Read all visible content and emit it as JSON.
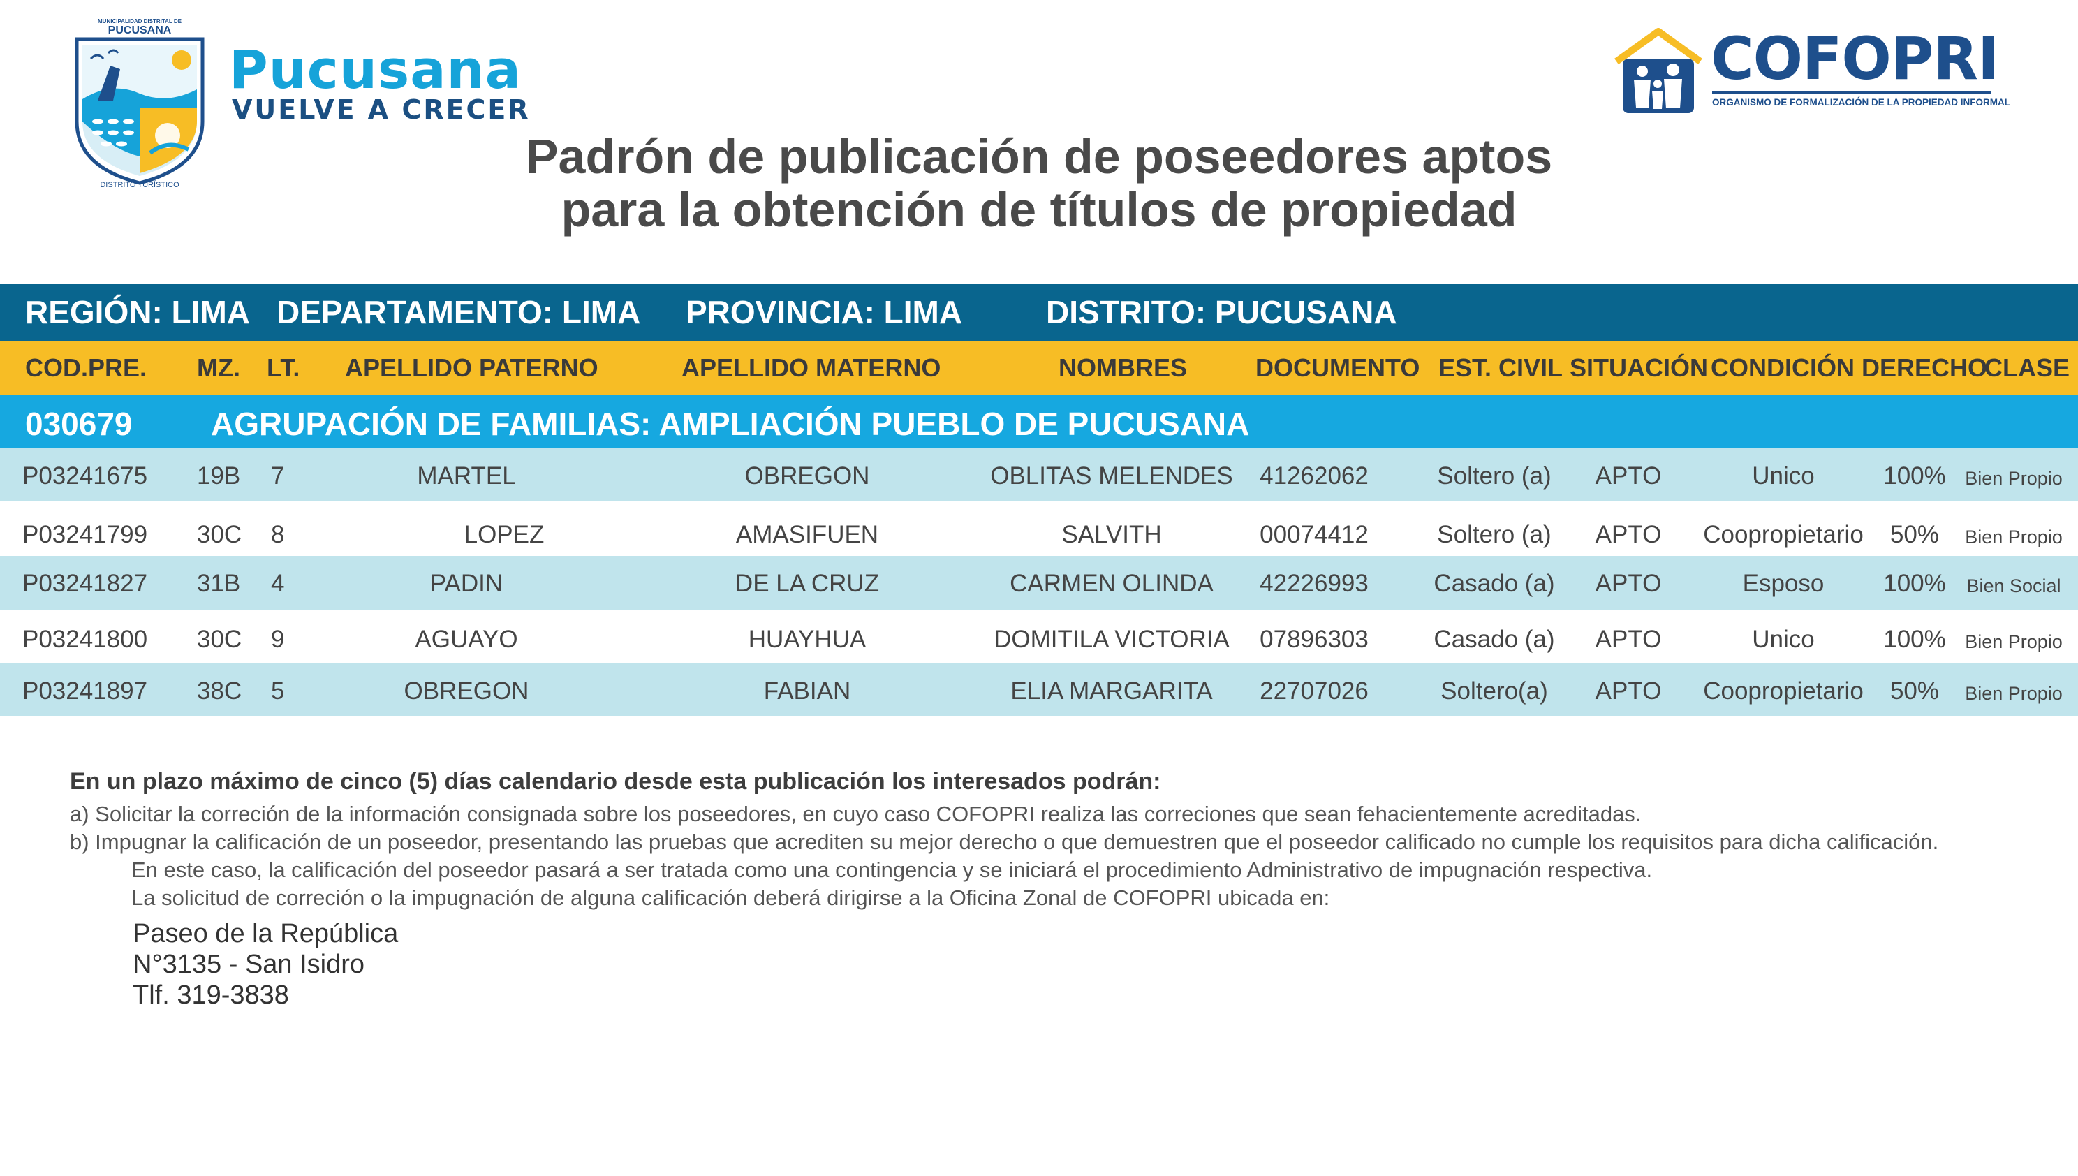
{
  "header": {
    "municipality": {
      "emblem_top_text": "MUNICIPALIDAD DISTRITAL DE",
      "emblem_name": "PUCUSANA",
      "emblem_bottom_text": "DISTRITO TURÍSTICO",
      "name": "Pucusana",
      "slogan": "VUELVE A CRECER"
    },
    "agency": {
      "name": "COFOPRI",
      "subtitle": "ORGANISMO DE FORMALIZACIÓN DE LA PROPIEDAD INFORMAL"
    }
  },
  "title": {
    "line1": "Padrón de publicación de poseedores aptos",
    "line2": "para la obtención de títulos de propiedad"
  },
  "location": {
    "region": "REGIÓN: LIMA",
    "departamento": "DEPARTAMENTO: LIMA",
    "provincia": "PROVINCIA: LIMA",
    "distrito": "DISTRITO: PUCUSANA"
  },
  "table": {
    "headers": {
      "cod_pre": "COD.PRE.",
      "mz": "MZ.",
      "lt": "LT.",
      "apellido_paterno": "APELLIDO PATERNO",
      "apellido_materno": "APELLIDO MATERNO",
      "nombres": "NOMBRES",
      "documento": "DOCUMENTO",
      "est_civil": "EST. CIVIL",
      "situacion": "SITUACIÓN",
      "condicion_derecho": "CONDICIÓN DERECHO",
      "clase": "CLASE"
    },
    "group": {
      "code": "030679",
      "name": "AGRUPACIÓN DE FAMILIAS: AMPLIACIÓN PUEBLO DE PUCUSANA"
    },
    "rows": [
      {
        "cod": "P03241675",
        "mz": "19B",
        "lt": "7",
        "paterno": "MARTEL",
        "materno": "OBREGON",
        "nombres": "OBLITAS MELENDES",
        "documento": "41262062",
        "est_civil": "Soltero (a)",
        "situacion": "APTO",
        "condicion": "Unico",
        "derecho": "100%",
        "clase": "Bien Propio"
      },
      {
        "cod": "P03241799",
        "mz": "30C",
        "lt": "8",
        "paterno": "LOPEZ",
        "materno": "AMASIFUEN",
        "nombres": "SALVITH",
        "documento": "00074412",
        "est_civil": "Soltero (a)",
        "situacion": "APTO",
        "condicion": "Coopropietario",
        "derecho": "50%",
        "clase": "Bien Propio"
      },
      {
        "cod": "P03241827",
        "mz": "31B",
        "lt": "4",
        "paterno": "PADIN",
        "materno": "DE LA CRUZ",
        "nombres": "CARMEN OLINDA",
        "documento": "42226993",
        "est_civil": "Casado (a)",
        "situacion": "APTO",
        "condicion": "Esposo",
        "derecho": "100%",
        "clase": "Bien Social"
      },
      {
        "cod": "P03241800",
        "mz": "30C",
        "lt": "9",
        "paterno": "AGUAYO",
        "materno": "HUAYHUA",
        "nombres": "DOMITILA VICTORIA",
        "documento": "07896303",
        "est_civil": "Casado (a)",
        "situacion": "APTO",
        "condicion": "Unico",
        "derecho": "100%",
        "clase": "Bien Propio"
      },
      {
        "cod": "P03241897",
        "mz": "38C",
        "lt": "5",
        "paterno": "OBREGON",
        "materno": "FABIAN",
        "nombres": "ELIA MARGARITA",
        "documento": "22707026",
        "est_civil": "Soltero(a)",
        "situacion": "APTO",
        "condicion": "Coopropietario",
        "derecho": "50%",
        "clase": "Bien Propio"
      }
    ]
  },
  "notice": {
    "heading": "En un plazo máximo de cinco (5) días calendario desde esta publicación los interesados podrán:",
    "item_a": "a) Solicitar la correción de la información consignada sobre los poseedores, en cuyo caso COFOPRI realiza las correciones que sean fehacientemente acreditadas.",
    "item_b": "b) Impugnar la calificación de un poseedor, presentando las pruebas que acrediten su mejor derecho o que  demuestren que el poseedor calificado no cumple los requisitos para dicha calificación.",
    "item_b_cont": "En este caso, la calificación del poseedor pasará a ser tratada como una contingencia y se iniciará el procedimiento Administrativo de impugnación respectiva.",
    "office_line": "La solicitud de correción o la impugnación de alguna calificación deberá dirigirse a la Oficina Zonal de COFOPRI ubicada en:",
    "address_1": "Paseo de la República",
    "address_2": "N°3135 - San Isidro",
    "phone": "Tlf. 319-3838"
  },
  "colors": {
    "location_bar": "#09658e",
    "header_bar": "#f7bd25",
    "group_bar": "#16a8e0",
    "row_alt": "#c0e4ec",
    "cofopri_blue": "#1e4f8c",
    "pucusana_blue": "#16a3d9"
  }
}
